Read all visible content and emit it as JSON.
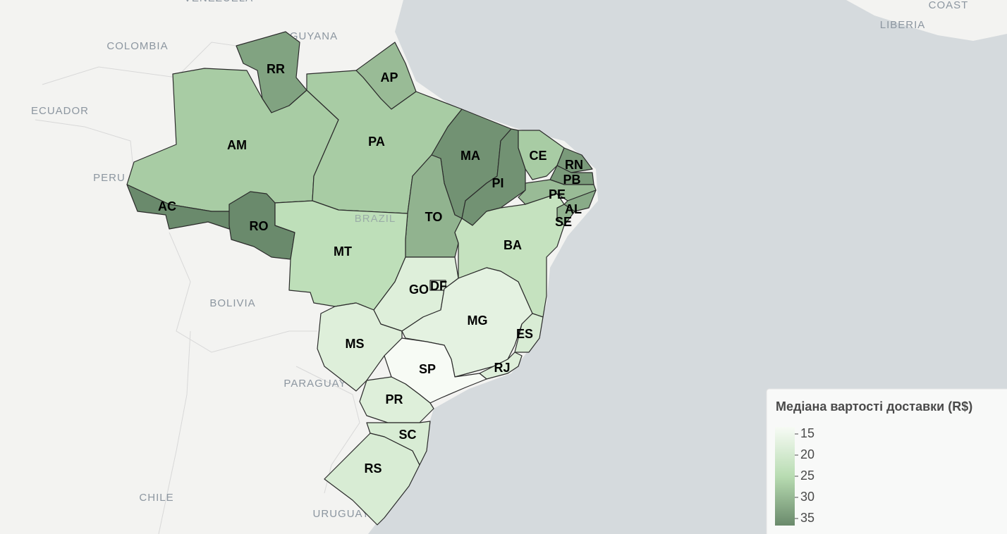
{
  "chart_data": {
    "type": "choropleth",
    "legend_title": "Медіана вартості доставки (R$)",
    "clim": [
      15,
      35
    ],
    "ticks": [
      15,
      20,
      25,
      30,
      35
    ],
    "colors": [
      "#f7fbf5",
      "#b8dcb2",
      "#6a8a6c"
    ],
    "basemap_labels": [
      "VENEZUELA",
      "GUYANA",
      "COLOMBIA",
      "ECUADOR",
      "PERU",
      "BOLIVIA",
      "BRAZIL",
      "PARAGUAY",
      "CHILE",
      "URUGUAY",
      "LIBERIA",
      "COAST"
    ],
    "regions": [
      {
        "name": "RR",
        "value": 32
      },
      {
        "name": "AP",
        "value": 29
      },
      {
        "name": "AM",
        "value": 27
      },
      {
        "name": "AC",
        "value": 35
      },
      {
        "name": "RO",
        "value": 35
      },
      {
        "name": "PA",
        "value": 27
      },
      {
        "name": "MA",
        "value": 34
      },
      {
        "name": "PI",
        "value": 34
      },
      {
        "name": "CE",
        "value": 27
      },
      {
        "name": "RN",
        "value": 33
      },
      {
        "name": "PB",
        "value": 33
      },
      {
        "name": "PE",
        "value": 29
      },
      {
        "name": "AL",
        "value": 31
      },
      {
        "name": "SE",
        "value": 30
      },
      {
        "name": "TO",
        "value": 30
      },
      {
        "name": "BA",
        "value": 23
      },
      {
        "name": "MT",
        "value": 24
      },
      {
        "name": "GO",
        "value": 19
      },
      {
        "name": "DF",
        "value": 19
      },
      {
        "name": "MS",
        "value": 19
      },
      {
        "name": "MG",
        "value": 18
      },
      {
        "name": "ES",
        "value": 20
      },
      {
        "name": "RJ",
        "value": 19
      },
      {
        "name": "SP",
        "value": 15
      },
      {
        "name": "PR",
        "value": 19
      },
      {
        "name": "SC",
        "value": 20
      },
      {
        "name": "RS",
        "value": 20
      }
    ]
  }
}
